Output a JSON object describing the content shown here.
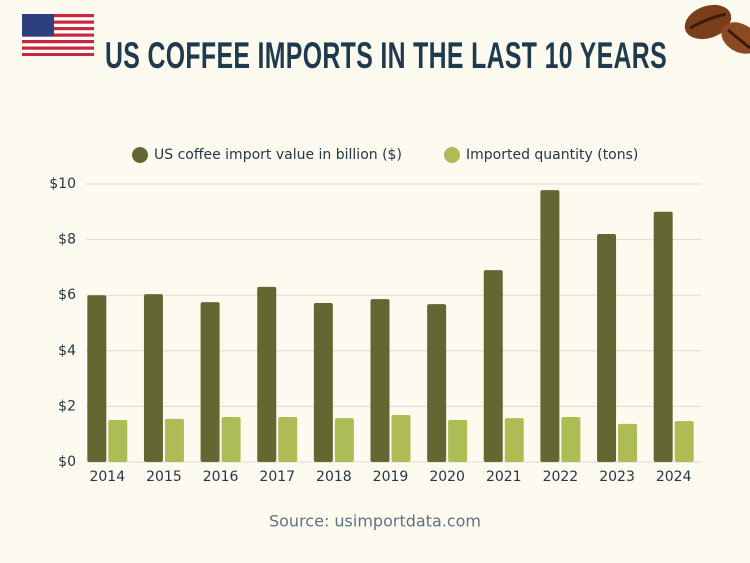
{
  "chart_data": {
    "type": "bar",
    "title": "US COFFEE IMPORTS IN THE LAST 10 YEARS",
    "source": "Source: usimportdata.com",
    "categories": [
      "2014",
      "2015",
      "2016",
      "2017",
      "2018",
      "2019",
      "2020",
      "2021",
      "2022",
      "2023",
      "2024"
    ],
    "series": [
      {
        "name": "US coffee import value in billion ($)",
        "color": "#636832",
        "values": [
          6.0,
          6.04,
          5.75,
          6.3,
          5.72,
          5.86,
          5.68,
          6.9,
          9.78,
          8.2,
          9.0
        ]
      },
      {
        "name": "Imported quantity (tons)",
        "color": "#aebc55",
        "values": [
          1.51,
          1.55,
          1.62,
          1.62,
          1.58,
          1.69,
          1.51,
          1.58,
          1.62,
          1.37,
          1.47
        ]
      }
    ],
    "ylim": [
      0,
      10
    ],
    "yticks": [
      {
        "value": 0,
        "label": "$0"
      },
      {
        "value": 2,
        "label": "$2"
      },
      {
        "value": 4,
        "label": "$4"
      },
      {
        "value": 6,
        "label": "$6"
      },
      {
        "value": 8,
        "label": "$8"
      },
      {
        "value": 10,
        "label": "$10"
      }
    ],
    "grid": true
  }
}
